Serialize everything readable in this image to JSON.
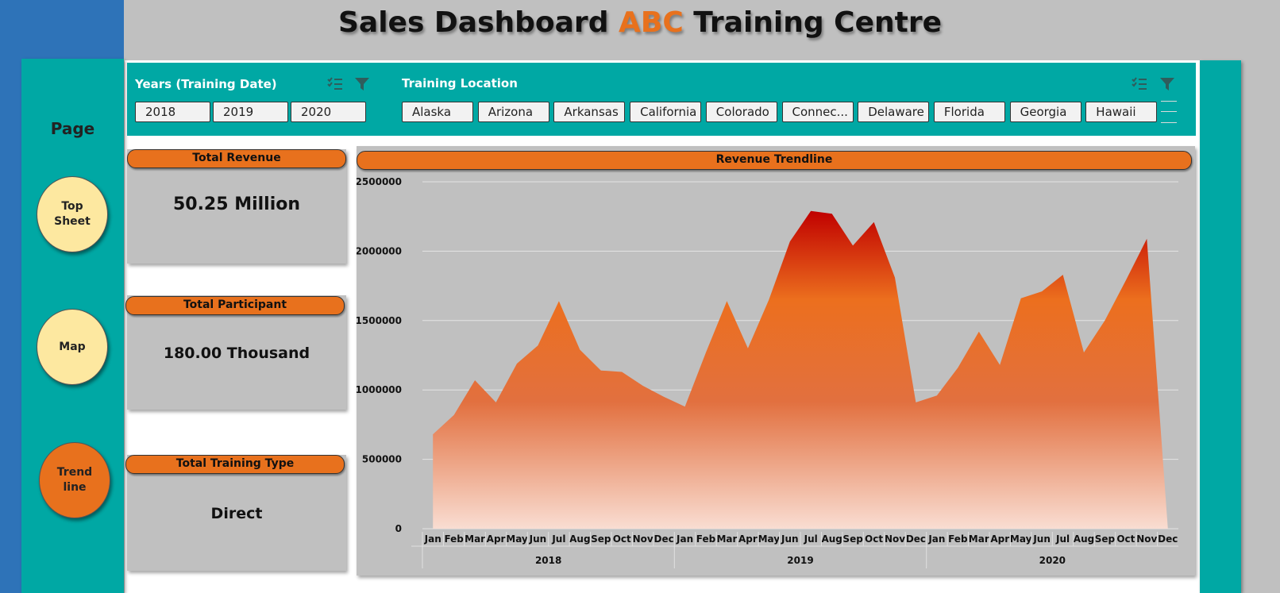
{
  "title": {
    "prefix": "Sales Dashboard",
    "accent": "ABC",
    "suffix": "Training Centre"
  },
  "colors": {
    "accent": "#e8711d",
    "teal": "#00a8a4",
    "blue": "#2e73b8",
    "nav_yellow": "#fde8a0"
  },
  "nav": {
    "heading": "Page",
    "buttons": [
      {
        "line1": "Top",
        "line2": "Sheet",
        "active": false
      },
      {
        "line1": "Map",
        "line2": "",
        "active": false
      },
      {
        "line1": "Trend",
        "line2": "line",
        "active": true
      }
    ]
  },
  "filters": {
    "years": {
      "title": "Years (Training Date)",
      "items": [
        "2018",
        "2019",
        "2020"
      ]
    },
    "location": {
      "title": "Training Location",
      "items": [
        "Alaska",
        "Arizona",
        "Arkansas",
        "California",
        "Colorado",
        "Connec...",
        "Delaware",
        "Florida",
        "Georgia",
        "Hawaii"
      ]
    },
    "icons": [
      "multi-select-icon",
      "clear-filter-icon"
    ]
  },
  "kpis": {
    "revenue": {
      "label": "Total Revenue",
      "value": "50.25 Million"
    },
    "participant": {
      "label": "Total Participant",
      "value": "180.00 Thousand"
    },
    "training_type": {
      "label": "Total Training Type",
      "value": "Direct"
    }
  },
  "chart_data": {
    "type": "area",
    "title": "Revenue Trendline",
    "y_ticks": [
      "2500000",
      "2000000",
      "1500000",
      "1000000",
      "500000",
      "0"
    ],
    "ylim": [
      0,
      2500000
    ],
    "months": [
      "Jan",
      "Feb",
      "Mar",
      "Apr",
      "May",
      "Jun",
      "Jul",
      "Aug",
      "Sep",
      "Oct",
      "Nov",
      "Dec"
    ],
    "years": [
      "2018",
      "2019",
      "2020"
    ],
    "grid": true,
    "values": [
      680000,
      820000,
      1070000,
      910000,
      1190000,
      1320000,
      1640000,
      1290000,
      1140000,
      1130000,
      1030000,
      950000,
      880000,
      1270000,
      1640000,
      1300000,
      1650000,
      2070000,
      2290000,
      2270000,
      2040000,
      2210000,
      1810000,
      910000,
      960000,
      1160000,
      1420000,
      1180000,
      1660000,
      1710000,
      1830000,
      1270000,
      1500000,
      1790000,
      2090000,
      0
    ]
  }
}
